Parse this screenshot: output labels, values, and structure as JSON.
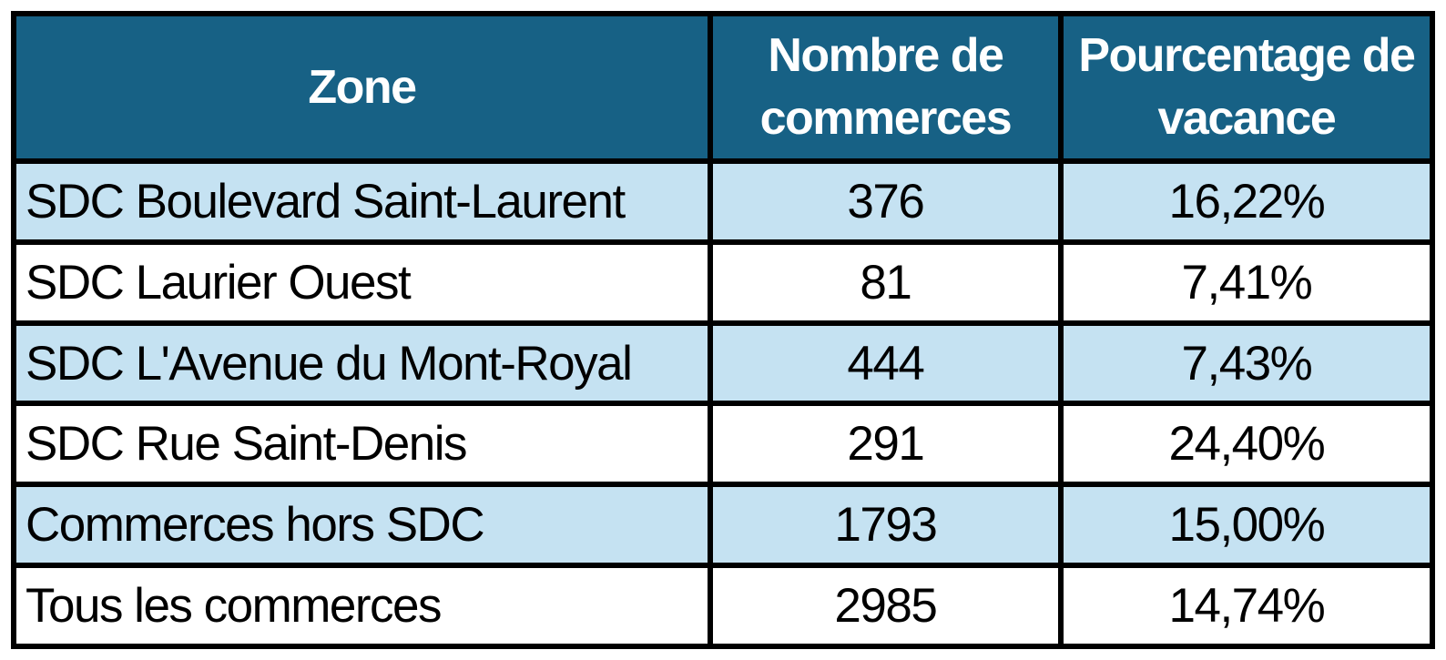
{
  "chart_data": {
    "type": "table",
    "columns": [
      "Zone",
      "Nombre de commerces",
      "Pourcentage de vacance"
    ],
    "rows": [
      [
        "SDC Boulevard Saint-Laurent",
        "376",
        "16,22%"
      ],
      [
        "SDC Laurier Ouest",
        "81",
        "7,41%"
      ],
      [
        "SDC L'Avenue du Mont-Royal",
        "444",
        "7,43%"
      ],
      [
        "SDC Rue Saint-Denis",
        "291",
        "24,40%"
      ],
      [
        "Commerces hors SDC",
        "1793",
        "15,00%"
      ],
      [
        "Tous les commerces",
        "2985",
        "14,74%"
      ]
    ],
    "numeric": {
      "categories": [
        "SDC Boulevard Saint-Laurent",
        "SDC Laurier Ouest",
        "SDC L'Avenue du Mont-Royal",
        "SDC Rue Saint-Denis",
        "Commerces hors SDC",
        "Tous les commerces"
      ],
      "nombre_de_commerces": [
        376,
        81,
        444,
        291,
        1793,
        2985
      ],
      "pourcentage_de_vacance_pct": [
        16.22,
        7.41,
        7.43,
        24.4,
        15.0,
        14.74
      ]
    },
    "layout": {
      "header_rows": 1,
      "zebra_striping": true,
      "first_body_row_shaded": true
    }
  },
  "colors": {
    "header_bg": "#176185",
    "header_text": "#FFFFFF",
    "row_alt_bg": "#C5E2F2",
    "row_bg": "#FFFFFF",
    "body_text": "#000000",
    "border": "#000000"
  }
}
